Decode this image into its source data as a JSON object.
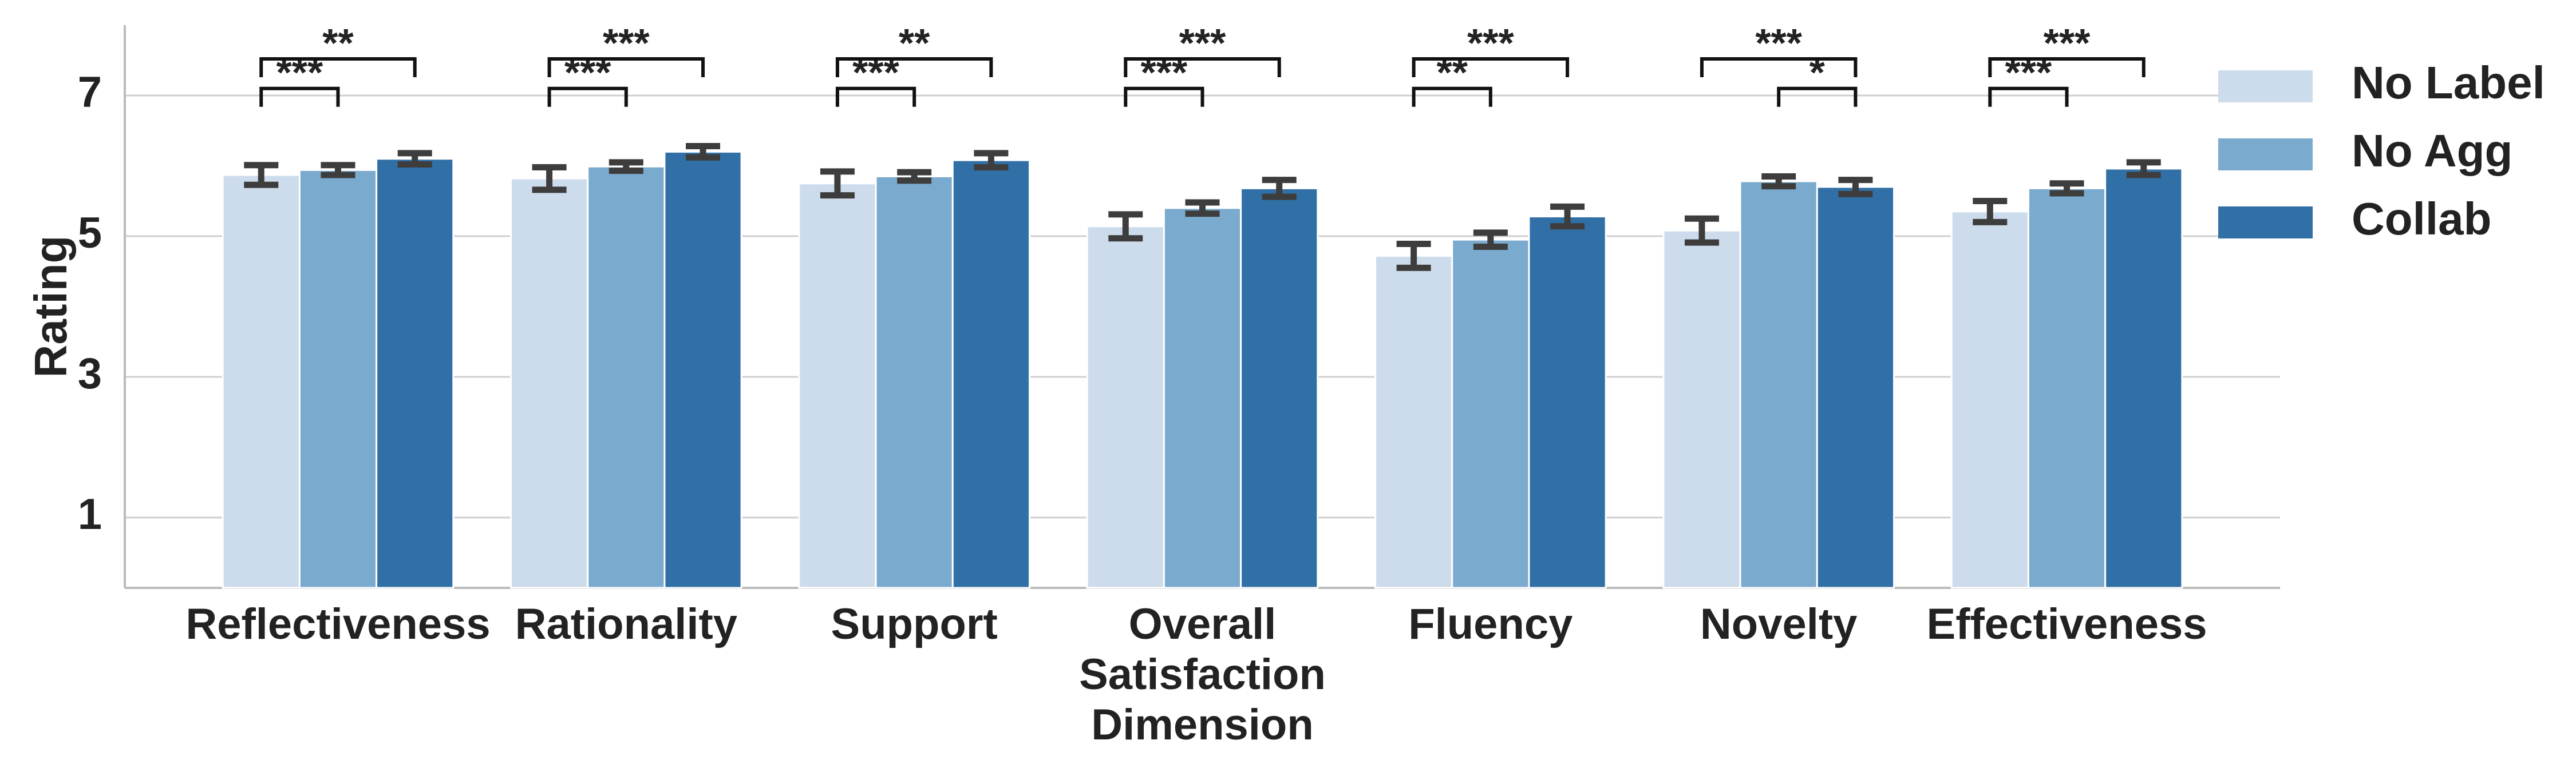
{
  "chart_data": {
    "type": "bar",
    "ylabel": "Rating",
    "categories": [
      "Reflectiveness",
      "Rationality",
      "Support",
      "Overall\nSatisfaction\nDimension",
      "Fluency",
      "Novelty",
      "Effectiveness"
    ],
    "series": [
      {
        "name": "No Label",
        "color": "#cddcec",
        "values": [
          5.87,
          5.82,
          5.75,
          5.14,
          4.72,
          5.08,
          5.35
        ],
        "errors": [
          0.14,
          0.16,
          0.17,
          0.17,
          0.17,
          0.17,
          0.15
        ]
      },
      {
        "name": "No Agg",
        "color": "#7aaacd",
        "values": [
          5.94,
          5.99,
          5.85,
          5.4,
          4.95,
          5.78,
          5.68
        ],
        "errors": [
          0.07,
          0.06,
          0.06,
          0.08,
          0.1,
          0.07,
          0.07
        ]
      },
      {
        "name": "Collab",
        "color": "#3170a6",
        "values": [
          6.1,
          6.2,
          6.08,
          5.68,
          5.28,
          5.7,
          5.96
        ],
        "errors": [
          0.08,
          0.08,
          0.1,
          0.12,
          0.14,
          0.1,
          0.09
        ]
      }
    ],
    "annotations": [
      {
        "category": 0,
        "from": 0,
        "to": 1,
        "label": "***"
      },
      {
        "category": 0,
        "from": 0,
        "to": 2,
        "label": "**"
      },
      {
        "category": 1,
        "from": 0,
        "to": 1,
        "label": "***"
      },
      {
        "category": 1,
        "from": 0,
        "to": 2,
        "label": "***"
      },
      {
        "category": 2,
        "from": 0,
        "to": 1,
        "label": "***"
      },
      {
        "category": 2,
        "from": 0,
        "to": 2,
        "label": "**"
      },
      {
        "category": 3,
        "from": 0,
        "to": 1,
        "label": "***"
      },
      {
        "category": 3,
        "from": 0,
        "to": 2,
        "label": "***"
      },
      {
        "category": 4,
        "from": 0,
        "to": 1,
        "label": "**"
      },
      {
        "category": 4,
        "from": 0,
        "to": 2,
        "label": "***"
      },
      {
        "category": 5,
        "from": 1,
        "to": 2,
        "label": "*"
      },
      {
        "category": 5,
        "from": 0,
        "to": 2,
        "label": "***"
      },
      {
        "category": 6,
        "from": 0,
        "to": 1,
        "label": "***"
      },
      {
        "category": 6,
        "from": 0,
        "to": 2,
        "label": "***"
      }
    ],
    "ylim": [
      0,
      8
    ],
    "yticks": [
      1,
      3,
      5,
      7
    ],
    "grid": true,
    "legend": "right"
  }
}
